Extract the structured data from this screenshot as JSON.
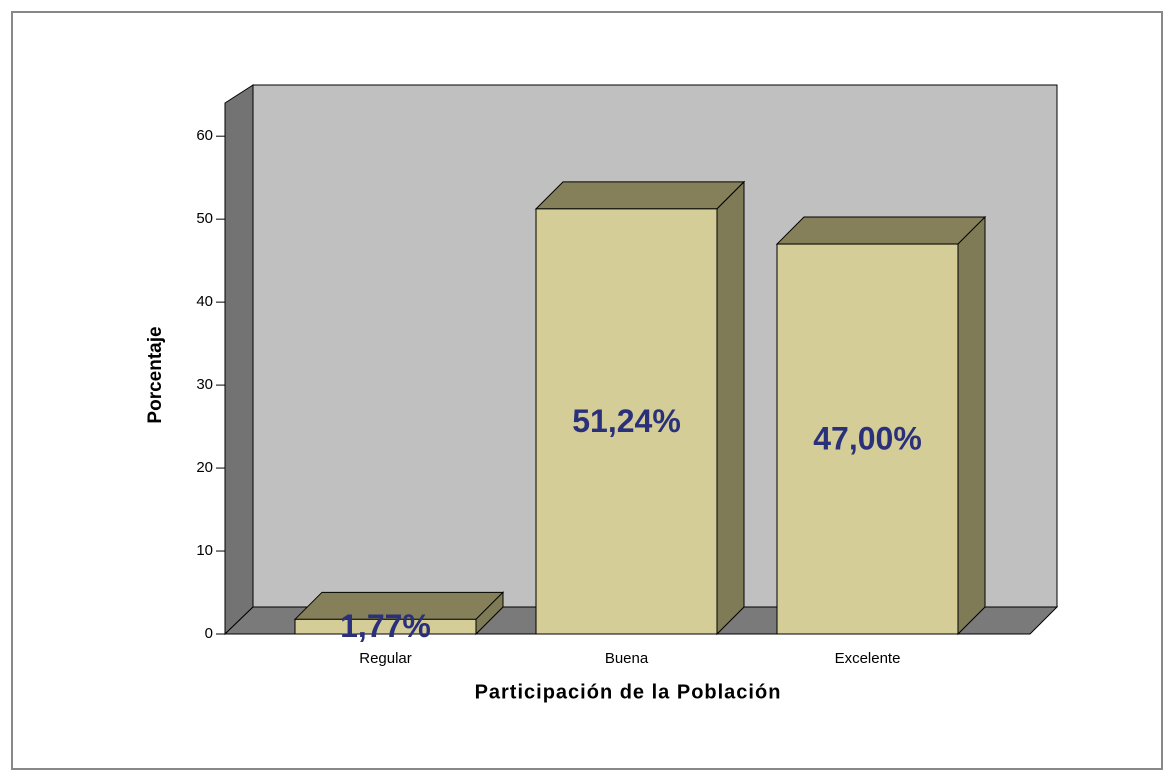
{
  "chart_data": {
    "type": "bar",
    "xlabel": "Participación de la Población",
    "ylabel": "Porcentaje",
    "categories": [
      "Regular",
      "Buena",
      "Excelente"
    ],
    "values": [
      1.77,
      51.24,
      47.0
    ],
    "value_labels": [
      "1,77%",
      "51,24%",
      "47,00%"
    ],
    "color": "#d4cd98",
    "ylim": [
      0,
      64
    ],
    "yticks": [
      0,
      10,
      20,
      30,
      40,
      50,
      60
    ]
  }
}
